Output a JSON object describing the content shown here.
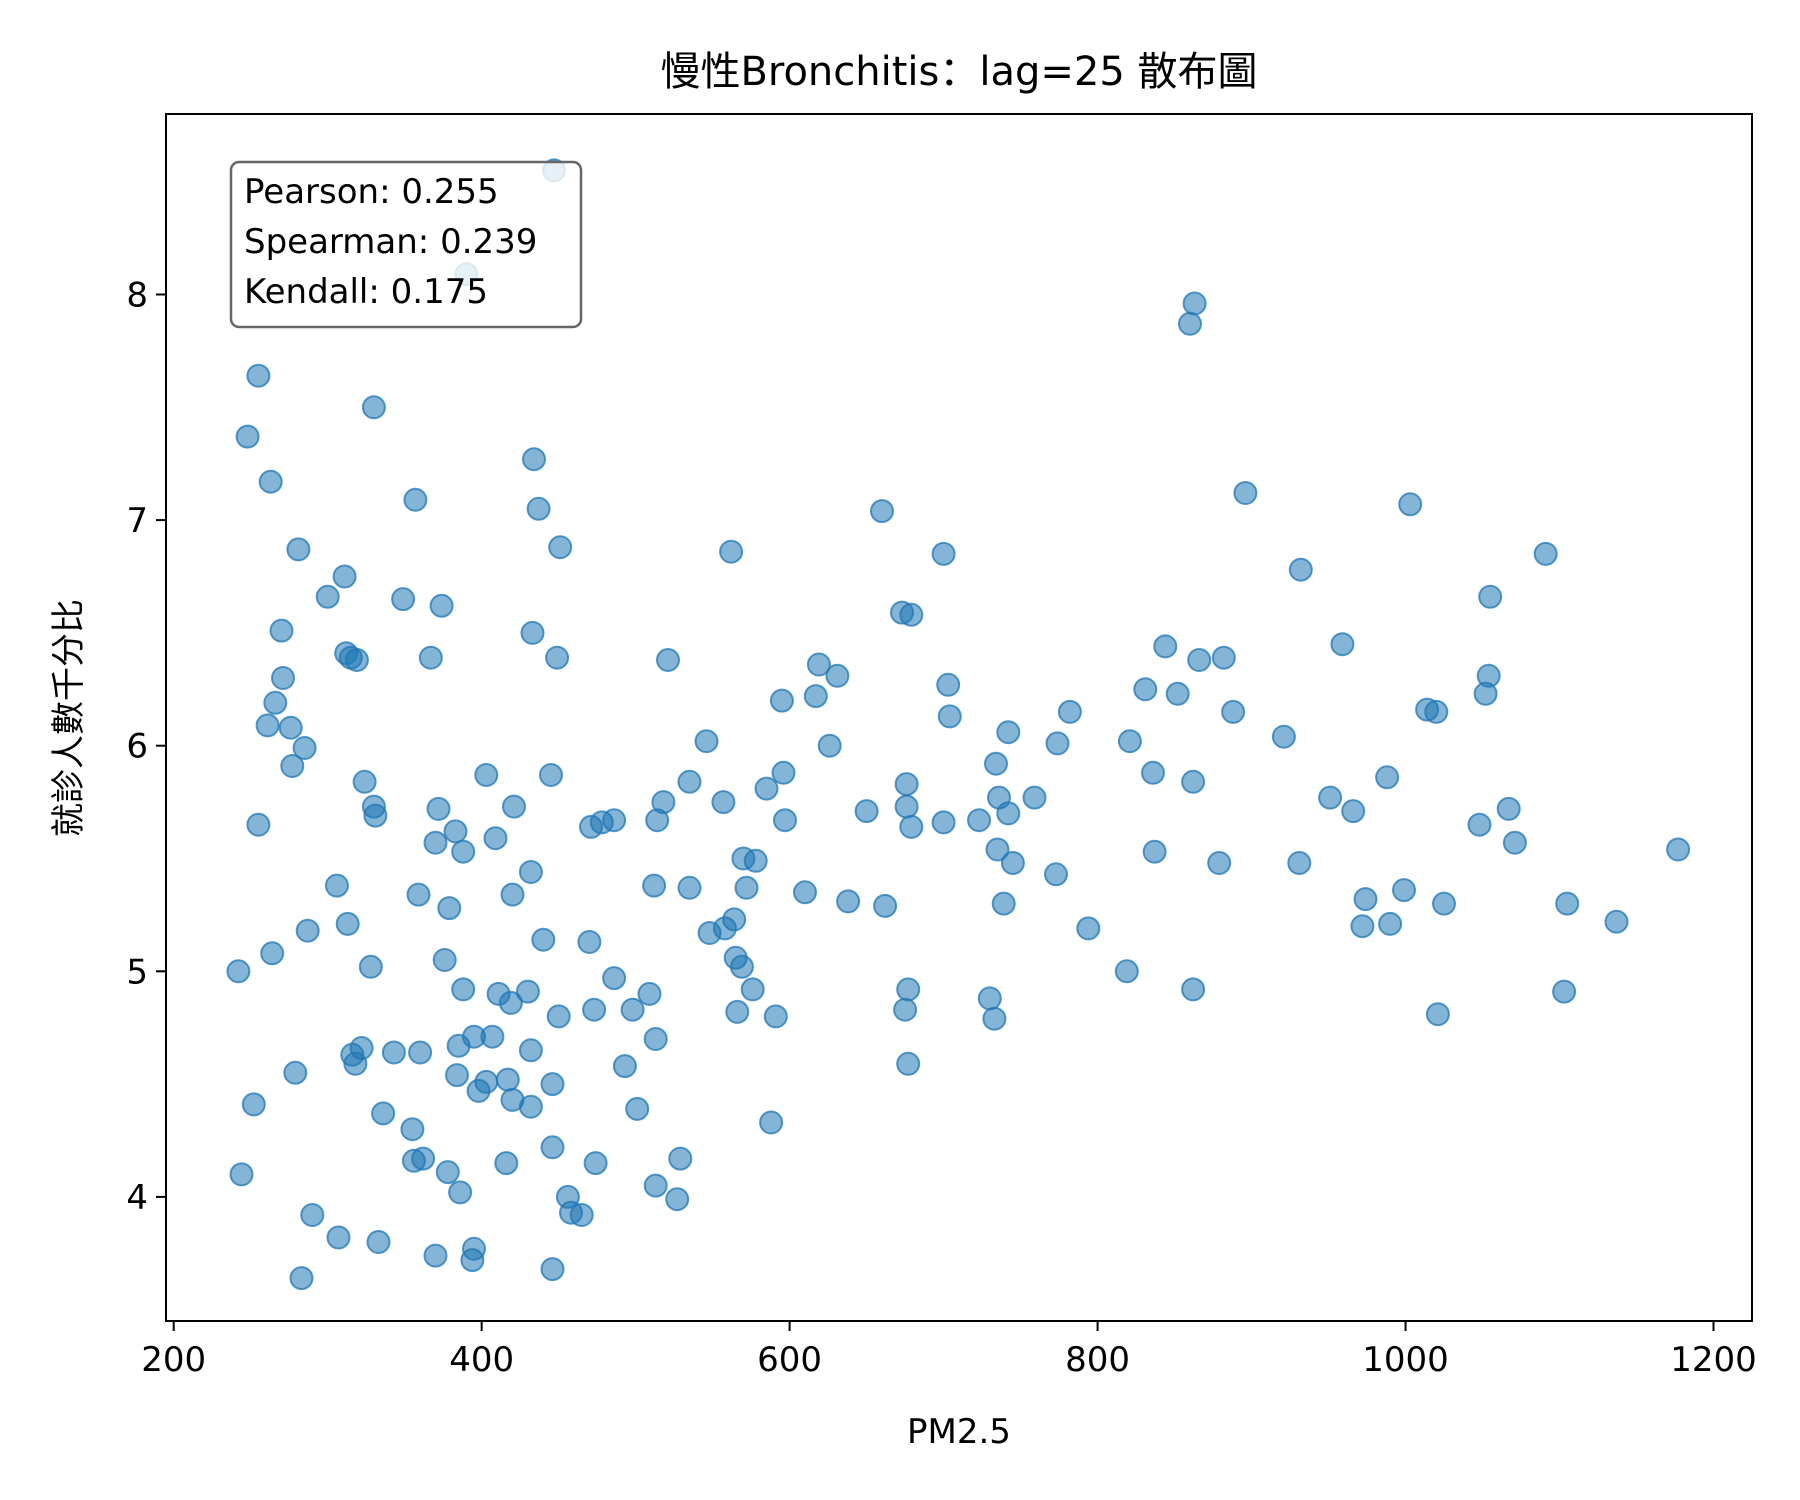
{
  "chart_data": {
    "type": "scatter",
    "title": "慢性Bronchitis：lag=25 散布圖",
    "xlabel": "PM2.5",
    "ylabel": "就診人數千分比",
    "xlim": [
      195,
      1225
    ],
    "ylim": [
      3.45,
      8.8
    ],
    "x_ticks": [
      200,
      400,
      600,
      800,
      1000,
      1200
    ],
    "y_ticks": [
      4,
      5,
      6,
      7,
      8
    ],
    "grid": false,
    "legend": "none",
    "marker_color": "#1f77b4",
    "marker_alpha": 0.6,
    "stats_box": {
      "position": "top-left",
      "lines": [
        "Pearson: 0.255",
        "Spearman: 0.239",
        "Kendall: 0.175"
      ]
    },
    "points": [
      [
        447,
        8.55
      ],
      [
        390,
        8.09
      ],
      [
        863,
        7.96
      ],
      [
        860,
        7.87
      ],
      [
        255,
        7.64
      ],
      [
        330,
        7.5
      ],
      [
        248,
        7.37
      ],
      [
        434,
        7.27
      ],
      [
        263,
        7.17
      ],
      [
        896,
        7.12
      ],
      [
        357,
        7.09
      ],
      [
        1003,
        7.07
      ],
      [
        437,
        7.05
      ],
      [
        660,
        7.04
      ],
      [
        281,
        6.87
      ],
      [
        451,
        6.88
      ],
      [
        562,
        6.86
      ],
      [
        700,
        6.85
      ],
      [
        1091,
        6.85
      ],
      [
        932,
        6.78
      ],
      [
        311,
        6.75
      ],
      [
        300,
        6.66
      ],
      [
        349,
        6.65
      ],
      [
        1055,
        6.66
      ],
      [
        374,
        6.62
      ],
      [
        673,
        6.59
      ],
      [
        679,
        6.58
      ],
      [
        270,
        6.51
      ],
      [
        433,
        6.5
      ],
      [
        844,
        6.44
      ],
      [
        959,
        6.45
      ],
      [
        312,
        6.41
      ],
      [
        315,
        6.39
      ],
      [
        319,
        6.38
      ],
      [
        367,
        6.39
      ],
      [
        449,
        6.39
      ],
      [
        521,
        6.38
      ],
      [
        866,
        6.38
      ],
      [
        882,
        6.39
      ],
      [
        619,
        6.36
      ],
      [
        271,
        6.3
      ],
      [
        631,
        6.31
      ],
      [
        1054,
        6.31
      ],
      [
        703,
        6.27
      ],
      [
        831,
        6.25
      ],
      [
        852,
        6.23
      ],
      [
        1052,
        6.23
      ],
      [
        266,
        6.19
      ],
      [
        595,
        6.2
      ],
      [
        617,
        6.22
      ],
      [
        888,
        6.15
      ],
      [
        782,
        6.15
      ],
      [
        1014,
        6.16
      ],
      [
        1020,
        6.15
      ],
      [
        261,
        6.09
      ],
      [
        276,
        6.08
      ],
      [
        704,
        6.13
      ],
      [
        742,
        6.06
      ],
      [
        921,
        6.04
      ],
      [
        285,
        5.99
      ],
      [
        546,
        6.02
      ],
      [
        626,
        6.0
      ],
      [
        774,
        6.01
      ],
      [
        821,
        6.02
      ],
      [
        277,
        5.91
      ],
      [
        734,
        5.92
      ],
      [
        836,
        5.88
      ],
      [
        324,
        5.84
      ],
      [
        403,
        5.87
      ],
      [
        445,
        5.87
      ],
      [
        535,
        5.84
      ],
      [
        596,
        5.88
      ],
      [
        585,
        5.81
      ],
      [
        676,
        5.83
      ],
      [
        862,
        5.84
      ],
      [
        988,
        5.86
      ],
      [
        330,
        5.73
      ],
      [
        331,
        5.69
      ],
      [
        372,
        5.72
      ],
      [
        421,
        5.73
      ],
      [
        518,
        5.75
      ],
      [
        557,
        5.75
      ],
      [
        650,
        5.71
      ],
      [
        676,
        5.73
      ],
      [
        736,
        5.77
      ],
      [
        759,
        5.77
      ],
      [
        951,
        5.77
      ],
      [
        966,
        5.71
      ],
      [
        1067,
        5.72
      ],
      [
        255,
        5.65
      ],
      [
        383,
        5.62
      ],
      [
        471,
        5.64
      ],
      [
        478,
        5.66
      ],
      [
        486,
        5.67
      ],
      [
        514,
        5.67
      ],
      [
        597,
        5.67
      ],
      [
        679,
        5.64
      ],
      [
        700,
        5.66
      ],
      [
        723,
        5.67
      ],
      [
        742,
        5.7
      ],
      [
        1048,
        5.65
      ],
      [
        409,
        5.59
      ],
      [
        370,
        5.57
      ],
      [
        1071,
        5.57
      ],
      [
        388,
        5.53
      ],
      [
        570,
        5.5
      ],
      [
        578,
        5.49
      ],
      [
        735,
        5.54
      ],
      [
        745,
        5.48
      ],
      [
        837,
        5.53
      ],
      [
        879,
        5.48
      ],
      [
        931,
        5.48
      ],
      [
        1177,
        5.54
      ],
      [
        432,
        5.44
      ],
      [
        773,
        5.43
      ],
      [
        306,
        5.38
      ],
      [
        512,
        5.38
      ],
      [
        535,
        5.37
      ],
      [
        572,
        5.37
      ],
      [
        359,
        5.34
      ],
      [
        420,
        5.34
      ],
      [
        610,
        5.35
      ],
      [
        638,
        5.31
      ],
      [
        662,
        5.29
      ],
      [
        739,
        5.3
      ],
      [
        974,
        5.32
      ],
      [
        999,
        5.36
      ],
      [
        1025,
        5.3
      ],
      [
        1105,
        5.3
      ],
      [
        379,
        5.28
      ],
      [
        313,
        5.21
      ],
      [
        287,
        5.18
      ],
      [
        548,
        5.17
      ],
      [
        558,
        5.19
      ],
      [
        564,
        5.23
      ],
      [
        794,
        5.19
      ],
      [
        972,
        5.2
      ],
      [
        990,
        5.21
      ],
      [
        1137,
        5.22
      ],
      [
        440,
        5.14
      ],
      [
        470,
        5.13
      ],
      [
        376,
        5.05
      ],
      [
        264,
        5.08
      ],
      [
        565,
        5.06
      ],
      [
        569,
        5.02
      ],
      [
        242,
        5.0
      ],
      [
        328,
        5.02
      ],
      [
        486,
        4.97
      ],
      [
        819,
        5.0
      ],
      [
        388,
        4.92
      ],
      [
        411,
        4.9
      ],
      [
        430,
        4.91
      ],
      [
        509,
        4.9
      ],
      [
        576,
        4.92
      ],
      [
        677,
        4.92
      ],
      [
        862,
        4.92
      ],
      [
        1103,
        4.91
      ],
      [
        419,
        4.86
      ],
      [
        473,
        4.83
      ],
      [
        498,
        4.83
      ],
      [
        566,
        4.82
      ],
      [
        591,
        4.8
      ],
      [
        675,
        4.83
      ],
      [
        730,
        4.88
      ],
      [
        733,
        4.79
      ],
      [
        1021,
        4.81
      ],
      [
        450,
        4.8
      ],
      [
        395,
        4.71
      ],
      [
        407,
        4.71
      ],
      [
        322,
        4.66
      ],
      [
        385,
        4.67
      ],
      [
        432,
        4.65
      ],
      [
        513,
        4.7
      ],
      [
        316,
        4.63
      ],
      [
        318,
        4.59
      ],
      [
        343,
        4.64
      ],
      [
        360,
        4.64
      ],
      [
        279,
        4.55
      ],
      [
        384,
        4.54
      ],
      [
        403,
        4.51
      ],
      [
        417,
        4.52
      ],
      [
        493,
        4.58
      ],
      [
        677,
        4.59
      ],
      [
        398,
        4.47
      ],
      [
        420,
        4.43
      ],
      [
        432,
        4.4
      ],
      [
        446,
        4.5
      ],
      [
        252,
        4.41
      ],
      [
        336,
        4.37
      ],
      [
        355,
        4.3
      ],
      [
        501,
        4.39
      ],
      [
        588,
        4.33
      ],
      [
        356,
        4.16
      ],
      [
        362,
        4.17
      ],
      [
        378,
        4.11
      ],
      [
        416,
        4.15
      ],
      [
        446,
        4.22
      ],
      [
        474,
        4.15
      ],
      [
        529,
        4.17
      ],
      [
        244,
        4.1
      ],
      [
        513,
        4.05
      ],
      [
        386,
        4.02
      ],
      [
        456,
        4.0
      ],
      [
        527,
        3.99
      ],
      [
        290,
        3.92
      ],
      [
        458,
        3.93
      ],
      [
        465,
        3.92
      ],
      [
        307,
        3.82
      ],
      [
        333,
        3.8
      ],
      [
        370,
        3.74
      ],
      [
        395,
        3.77
      ],
      [
        394,
        3.72
      ],
      [
        446,
        3.68
      ],
      [
        283,
        3.64
      ]
    ]
  }
}
